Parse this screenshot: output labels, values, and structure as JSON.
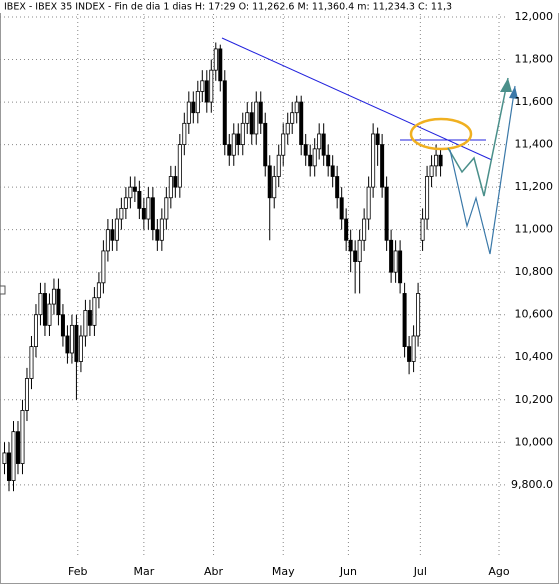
{
  "chart_data": {
    "type": "candlestick",
    "title": "IBEX - IBEX 35 INDEX - Fin de dia 1 dias  H: 17:29  O: 11,262.6  M: 11,360.4  m: 11,234.3  C: 11,3",
    "up_color": "#ffffff",
    "down_color": "#000000",
    "grid": true,
    "xlim": [
      -1,
      112
    ],
    "xticks": [
      {
        "value": 16.3,
        "label": "Feb"
      },
      {
        "value": 31,
        "label": "Mar"
      },
      {
        "value": 46.5,
        "label": "Abr"
      },
      {
        "value": 62,
        "label": "May"
      },
      {
        "value": 76.5,
        "label": "Jun"
      },
      {
        "value": 92.5,
        "label": "Jul"
      },
      {
        "value": 110,
        "label": "Ago"
      }
    ],
    "ylim": [
      9470,
      12080
    ],
    "yticks": [
      {
        "value": 9800,
        "label": "9,800.0"
      },
      {
        "value": 10000,
        "label": "10,000"
      },
      {
        "value": 10200,
        "label": "10,200"
      },
      {
        "value": 10400,
        "label": "10,400"
      },
      {
        "value": 10600,
        "label": "10,600"
      },
      {
        "value": 10800,
        "label": "10,800"
      },
      {
        "value": 11000,
        "label": "11,000"
      },
      {
        "value": 11200,
        "label": "11,200"
      },
      {
        "value": 11400,
        "label": "11,400"
      },
      {
        "value": 11600,
        "label": "11,600"
      },
      {
        "value": 11800,
        "label": "11,800"
      },
      {
        "value": 12000,
        "label": "12,000"
      }
    ],
    "candles": [
      [
        9900,
        10000,
        9850,
        9950
      ],
      [
        9950,
        10000,
        9770,
        9820
      ],
      [
        9820,
        10100,
        9770,
        10050
      ],
      [
        10050,
        10100,
        9850,
        9900
      ],
      [
        9900,
        10200,
        9850,
        10150
      ],
      [
        10150,
        10350,
        10100,
        10300
      ],
      [
        10300,
        10500,
        10250,
        10450
      ],
      [
        10450,
        10650,
        10400,
        10600
      ],
      [
        10600,
        10750,
        10550,
        10700
      ],
      [
        10700,
        10750,
        10500,
        10550
      ],
      [
        10550,
        10700,
        10500,
        10650
      ],
      [
        10650,
        10770,
        10600,
        10720
      ],
      [
        10720,
        10770,
        10550,
        10600
      ],
      [
        10600,
        10650,
        10450,
        10500
      ],
      [
        10500,
        10550,
        10370,
        10420
      ],
      [
        10420,
        10600,
        10370,
        10550
      ],
      [
        10550,
        10600,
        10200,
        10380
      ],
      [
        10380,
        10550,
        10330,
        10500
      ],
      [
        10500,
        10670,
        10450,
        10620
      ],
      [
        10620,
        10670,
        10500,
        10550
      ],
      [
        10550,
        10730,
        10500,
        10680
      ],
      [
        10680,
        10800,
        10630,
        10750
      ],
      [
        10750,
        10950,
        10700,
        10900
      ],
      [
        10900,
        11050,
        10850,
        11000
      ],
      [
        11000,
        11050,
        10900,
        10950
      ],
      [
        10950,
        11100,
        10900,
        11050
      ],
      [
        11050,
        11150,
        11000,
        11100
      ],
      [
        11100,
        11200,
        11050,
        11150
      ],
      [
        11150,
        11250,
        11100,
        11200
      ],
      [
        11200,
        11250,
        11130,
        11180
      ],
      [
        11180,
        11230,
        11050,
        11100
      ],
      [
        11100,
        11150,
        11000,
        11050
      ],
      [
        11050,
        11200,
        11000,
        11150
      ],
      [
        11150,
        11200,
        10950,
        11000
      ],
      [
        11000,
        11050,
        10900,
        10950
      ],
      [
        10950,
        11100,
        10900,
        11050
      ],
      [
        11050,
        11200,
        11000,
        11150
      ],
      [
        11150,
        11300,
        11100,
        11250
      ],
      [
        11250,
        11300,
        11150,
        11200
      ],
      [
        11200,
        11450,
        11150,
        11400
      ],
      [
        11400,
        11550,
        11350,
        11500
      ],
      [
        11500,
        11650,
        11450,
        11600
      ],
      [
        11600,
        11650,
        11500,
        11550
      ],
      [
        11550,
        11700,
        11500,
        11650
      ],
      [
        11650,
        11750,
        11600,
        11700
      ],
      [
        11700,
        11750,
        11550,
        11600
      ],
      [
        11600,
        11800,
        11550,
        11750
      ],
      [
        11750,
        11880,
        11700,
        11850
      ],
      [
        11850,
        11870,
        11650,
        11700
      ],
      [
        11700,
        11750,
        11350,
        11400
      ],
      [
        11400,
        11450,
        11300,
        11350
      ],
      [
        11350,
        11500,
        11300,
        11450
      ],
      [
        11450,
        11500,
        11350,
        11400
      ],
      [
        11400,
        11550,
        11350,
        11500
      ],
      [
        11500,
        11600,
        11450,
        11550
      ],
      [
        11550,
        11600,
        11400,
        11450
      ],
      [
        11450,
        11650,
        11400,
        11600
      ],
      [
        11600,
        11650,
        11450,
        11500
      ],
      [
        11500,
        11550,
        11250,
        11300
      ],
      [
        11300,
        11350,
        10950,
        11150
      ],
      [
        11150,
        11300,
        11100,
        11250
      ],
      [
        11250,
        11400,
        11200,
        11350
      ],
      [
        11350,
        11500,
        11300,
        11450
      ],
      [
        11450,
        11550,
        11400,
        11500
      ],
      [
        11500,
        11600,
        11450,
        11550
      ],
      [
        11550,
        11630,
        11500,
        11600
      ],
      [
        11600,
        11630,
        11350,
        11400
      ],
      [
        11400,
        11450,
        11300,
        11350
      ],
      [
        11350,
        11400,
        11250,
        11300
      ],
      [
        11300,
        11430,
        11250,
        11380
      ],
      [
        11380,
        11500,
        11330,
        11450
      ],
      [
        11450,
        11500,
        11300,
        11350
      ],
      [
        11350,
        11400,
        11250,
        11300
      ],
      [
        11300,
        11350,
        11200,
        11250
      ],
      [
        11250,
        11300,
        11100,
        11150
      ],
      [
        11150,
        11200,
        11000,
        11050
      ],
      [
        11050,
        11100,
        10900,
        10950
      ],
      [
        10950,
        11000,
        10800,
        10900
      ],
      [
        10900,
        10950,
        10700,
        10850
      ],
      [
        10850,
        11000,
        10700,
        10950
      ],
      [
        10950,
        11100,
        10900,
        11050
      ],
      [
        11050,
        11250,
        11000,
        11200
      ],
      [
        11200,
        11500,
        11150,
        11450
      ],
      [
        11450,
        11480,
        11300,
        11400
      ],
      [
        11400,
        11450,
        11150,
        11200
      ],
      [
        11200,
        11250,
        10900,
        10950
      ],
      [
        10950,
        11000,
        10750,
        10800
      ],
      [
        10800,
        10950,
        10750,
        10900
      ],
      [
        10900,
        10950,
        10700,
        10750
      ],
      [
        10700,
        10750,
        10400,
        10450
      ],
      [
        10450,
        10500,
        10320,
        10380
      ],
      [
        10380,
        10550,
        10330,
        10500
      ],
      [
        10500,
        10750,
        10450,
        10700
      ],
      [
        10950,
        11100,
        10900,
        11050
      ],
      [
        11050,
        11300,
        11000,
        11250
      ],
      [
        11250,
        11350,
        11200,
        11300
      ],
      [
        11300,
        11400,
        11250,
        11350
      ],
      [
        11350,
        11380,
        11250,
        11300
      ]
    ]
  }
}
